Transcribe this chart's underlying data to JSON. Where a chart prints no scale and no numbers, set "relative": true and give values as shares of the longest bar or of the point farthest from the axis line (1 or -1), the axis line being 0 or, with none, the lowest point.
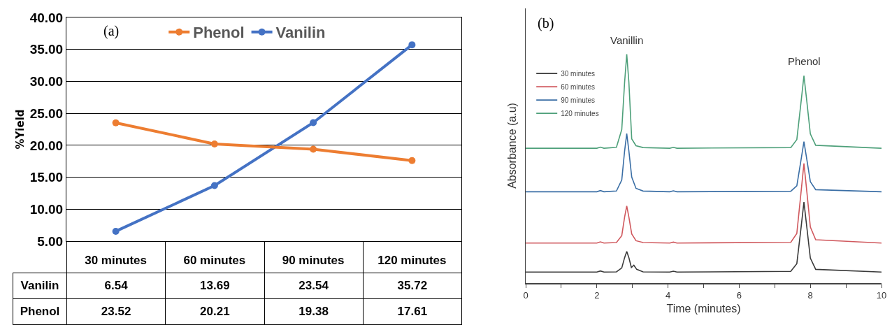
{
  "chart_data": [
    {
      "type": "line",
      "ylabel": "%Yield",
      "categories": [
        "30 minutes",
        "60 minutes",
        "90 minutes",
        "120 minutes"
      ],
      "series": [
        {
          "name": "Vanilin",
          "color": "#4472c4",
          "values": [
            6.54,
            13.69,
            23.54,
            35.72
          ]
        },
        {
          "name": "Phenol",
          "color": "#ed7d31",
          "values": [
            23.52,
            20.21,
            19.38,
            17.61
          ]
        }
      ],
      "ylim": [
        5,
        40
      ],
      "yticks": [
        {
          "value": 5,
          "label": "5.00"
        },
        {
          "value": 10,
          "label": "10.00"
        },
        {
          "value": 15,
          "label": "15.00"
        },
        {
          "value": 20,
          "label": "20.00"
        },
        {
          "value": 25,
          "label": "25.00"
        },
        {
          "value": 30,
          "label": "30.00"
        },
        {
          "value": 35,
          "label": "35.00"
        },
        {
          "value": 40,
          "label": "40.00"
        }
      ],
      "grid": "y",
      "legend": "top",
      "marker": "circle",
      "line_style": "solid",
      "data_labels": true,
      "annotations": [
        "(a)"
      ]
    },
    {
      "type": "line",
      "xlabel": "Time (minutes)",
      "ylabel": "Absorbance (a.u)",
      "relative": true,
      "series": [
        {
          "name": "30 minutes",
          "color": "#3a3a3a",
          "x": [
            0,
            2.0,
            2.1,
            2.2,
            2.55,
            2.7,
            2.78,
            2.84,
            2.9,
            2.97,
            3.04,
            3.12,
            3.3,
            4.05,
            4.15,
            4.25,
            7.45,
            7.62,
            7.73,
            7.82,
            7.9,
            8.0,
            8.15,
            10
          ],
          "values": [
            0.048,
            0.048,
            0.053,
            0.048,
            0.049,
            0.066,
            0.111,
            0.138,
            0.111,
            0.068,
            0.078,
            0.06,
            0.049,
            0.048,
            0.052,
            0.048,
            0.051,
            0.085,
            0.23,
            0.354,
            0.245,
            0.109,
            0.06,
            0.048
          ]
        },
        {
          "name": "60 minutes",
          "color": "#d0595e",
          "x": [
            0,
            2.0,
            2.1,
            2.2,
            2.55,
            2.7,
            2.78,
            2.84,
            2.9,
            2.98,
            3.1,
            3.3,
            4.05,
            4.15,
            4.25,
            7.45,
            7.62,
            7.73,
            7.82,
            7.9,
            8.0,
            8.15,
            10
          ],
          "values": [
            0.175,
            0.175,
            0.18,
            0.175,
            0.177,
            0.207,
            0.288,
            0.337,
            0.288,
            0.215,
            0.185,
            0.177,
            0.175,
            0.179,
            0.175,
            0.178,
            0.217,
            0.384,
            0.523,
            0.401,
            0.245,
            0.189,
            0.175
          ]
        },
        {
          "name": "90 minutes",
          "color": "#3a6ea5",
          "x": [
            0,
            2.0,
            2.1,
            2.2,
            2.55,
            2.7,
            2.78,
            2.84,
            2.9,
            2.98,
            3.1,
            3.3,
            4.05,
            4.15,
            4.25,
            7.45,
            7.62,
            7.73,
            7.82,
            7.9,
            8.0,
            8.15,
            10
          ],
          "values": [
            0.399,
            0.399,
            0.404,
            0.399,
            0.402,
            0.45,
            0.577,
            0.653,
            0.577,
            0.463,
            0.414,
            0.402,
            0.399,
            0.403,
            0.399,
            0.401,
            0.425,
            0.53,
            0.618,
            0.541,
            0.443,
            0.408,
            0.399
          ]
        },
        {
          "name": "120 minutes",
          "color": "#4ea07a",
          "x": [
            0,
            2.0,
            2.1,
            2.2,
            2.55,
            2.7,
            2.78,
            2.84,
            2.9,
            2.98,
            3.1,
            3.3,
            4.05,
            4.15,
            4.25,
            7.45,
            7.62,
            7.73,
            7.82,
            7.9,
            8.0,
            8.15,
            10
          ],
          "values": [
            0.589,
            0.589,
            0.594,
            0.589,
            0.593,
            0.671,
            0.877,
            1.0,
            0.877,
            0.63,
            0.6,
            0.592,
            0.589,
            0.593,
            0.589,
            0.592,
            0.627,
            0.779,
            0.906,
            0.795,
            0.652,
            0.602,
            0.589
          ]
        }
      ],
      "xlim": [
        0,
        10
      ],
      "xticks": [
        0,
        {
          "value": 1,
          "label": null
        },
        2,
        {
          "value": 3,
          "label": null
        },
        4,
        {
          "value": 5,
          "label": null
        },
        6,
        {
          "value": 7,
          "label": null
        },
        8,
        {
          "value": 9,
          "label": null
        },
        10
      ],
      "grid": false,
      "legend": "top left",
      "marker": "none",
      "line_style": "solid",
      "annotations": [
        "(b)",
        {
          "text": "Vanillin",
          "x": 2.84,
          "y": 1.0
        },
        {
          "text": "Phenol",
          "x": 7.82,
          "y": 0.906
        }
      ]
    }
  ]
}
